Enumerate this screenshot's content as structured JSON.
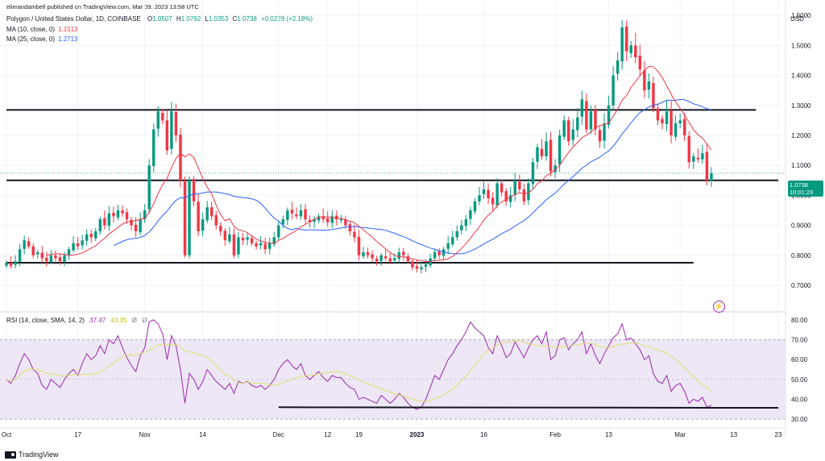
{
  "publisher_line": "elimandambell published on TradingView.com, Mar 09, 2023 13:58 UTC",
  "symbol": {
    "name": "Polygon / United States Dollar, 1D, COINBASE",
    "open_label": "O",
    "open": "1.0507",
    "high_label": "H",
    "high": "1.0792",
    "low_label": "L",
    "low": "1.0353",
    "close_label": "C",
    "close": "1.0738",
    "change": "+0.0229 (+2.18%)"
  },
  "ma10": {
    "label": "MA (10, close, 0)",
    "value": "1.1513",
    "color": "#f23645"
  },
  "ma25": {
    "label": "MA (25, close, 0)",
    "value": "1.2713",
    "color": "#2962ff"
  },
  "rsi": {
    "label": "RSI (14, close, SMA, 14, 2)",
    "value": "37.47",
    "sma": "43.35",
    "extra1": "Ø",
    "extra2": "Ø",
    "color": "#9c27b0",
    "sma_color": "#d4d400"
  },
  "price_label": {
    "value": "1.0738",
    "countdown": "10:01:23"
  },
  "currency": "USD",
  "brand": "TradingView",
  "colors": {
    "up": "#089981",
    "down": "#f23645",
    "band": "#ede7f6"
  },
  "chart_data": [
    {
      "type": "candlestick",
      "title": "Polygon / United States Dollar, 1D, COINBASE",
      "ylabel": "USD",
      "yticks": [
        "1.6000",
        "1.5000",
        "1.4000",
        "1.3000",
        "1.2000",
        "1.1000",
        "1.0000",
        "0.9000",
        "0.8000",
        "0.7000"
      ],
      "ylim": [
        0.63,
        1.63
      ],
      "xticks": [
        {
          "label": "Oct",
          "day": 0
        },
        {
          "label": "17",
          "day": 16
        },
        {
          "label": "Nov",
          "day": 31
        },
        {
          "label": "14",
          "day": 44
        },
        {
          "label": "Dec",
          "day": 61
        },
        {
          "label": "12",
          "day": 72
        },
        {
          "label": "19",
          "day": 79
        },
        {
          "label": "2023",
          "day": 92
        },
        {
          "label": "16",
          "day": 107
        },
        {
          "label": "Feb",
          "day": 123
        },
        {
          "label": "13",
          "day": 135
        },
        {
          "label": "Mar",
          "day": 151
        },
        {
          "label": "13",
          "day": 163
        },
        {
          "label": "23",
          "day": 173
        }
      ],
      "horizontal_lines": [
        {
          "from_day": 0,
          "to_day": 168,
          "value": 1.285
        },
        {
          "from_day": 0,
          "to_day": 173,
          "value": 1.05
        },
        {
          "from_day": 0,
          "to_day": 154,
          "value": 0.775
        }
      ],
      "closes": [
        0.775,
        0.765,
        0.78,
        0.82,
        0.85,
        0.83,
        0.8,
        0.81,
        0.79,
        0.78,
        0.8,
        0.79,
        0.78,
        0.8,
        0.82,
        0.84,
        0.83,
        0.85,
        0.87,
        0.86,
        0.88,
        0.92,
        0.9,
        0.94,
        0.93,
        0.95,
        0.94,
        0.92,
        0.9,
        0.88,
        0.92,
        0.95,
        1.1,
        1.22,
        1.28,
        1.25,
        1.15,
        1.28,
        1.2,
        1.05,
        0.8,
        1.05,
        0.98,
        0.88,
        0.92,
        0.96,
        0.93,
        0.9,
        0.88,
        0.85,
        0.87,
        0.8,
        0.86,
        0.85,
        0.86,
        0.84,
        0.83,
        0.84,
        0.82,
        0.84,
        0.86,
        0.9,
        0.92,
        0.95,
        0.94,
        0.93,
        0.95,
        0.92,
        0.91,
        0.92,
        0.93,
        0.92,
        0.91,
        0.93,
        0.92,
        0.92,
        0.9,
        0.88,
        0.86,
        0.8,
        0.81,
        0.8,
        0.79,
        0.78,
        0.8,
        0.79,
        0.78,
        0.79,
        0.81,
        0.8,
        0.78,
        0.76,
        0.755,
        0.76,
        0.77,
        0.79,
        0.81,
        0.8,
        0.82,
        0.84,
        0.86,
        0.88,
        0.9,
        0.92,
        0.95,
        0.98,
        1.0,
        1.02,
        0.99,
        0.97,
        1.04,
        1.01,
        0.98,
        1.0,
        1.05,
        1.02,
        0.98,
        1.04,
        1.11,
        1.16,
        1.13,
        1.18,
        1.08,
        1.1,
        1.2,
        1.25,
        1.18,
        1.22,
        1.26,
        1.32,
        1.22,
        1.28,
        1.22,
        1.18,
        1.24,
        1.3,
        1.4,
        1.45,
        1.56,
        1.48,
        1.5,
        1.46,
        1.42,
        1.35,
        1.38,
        1.29,
        1.25,
        1.24,
        1.28,
        1.2,
        1.24,
        1.25,
        1.2,
        1.11,
        1.13,
        1.12,
        1.14,
        1.05,
        1.0738
      ],
      "ma10_day_range": [
        9,
        162
      ],
      "ma25_day_range": [
        24,
        162
      ]
    },
    {
      "type": "line",
      "title": "RSI (14, close, SMA, 14, 2)",
      "yticks": [
        "80.00",
        "70.00",
        "60.00",
        "50.00",
        "40.00",
        "30.00"
      ],
      "ylim": [
        28,
        82
      ],
      "band": [
        30,
        70
      ],
      "midline": 50,
      "trendline": {
        "from_day": 61,
        "to_day": 173,
        "value": 36
      },
      "series": [
        {
          "name": "RSI",
          "values": [
            50,
            48,
            52,
            58,
            63,
            60,
            55,
            53,
            47,
            45,
            50,
            48,
            46,
            50,
            53,
            55,
            52,
            58,
            63,
            60,
            62,
            67,
            63,
            70,
            68,
            72,
            66,
            61,
            57,
            54,
            62,
            66,
            79,
            80,
            78,
            73,
            60,
            72,
            67,
            55,
            38,
            53,
            50,
            45,
            49,
            55,
            52,
            49,
            47,
            45,
            48,
            43,
            49,
            48,
            49,
            47,
            46,
            47,
            45,
            47,
            50,
            55,
            58,
            60,
            57,
            55,
            58,
            52,
            50,
            52,
            54,
            51,
            49,
            52,
            51,
            51,
            48,
            46,
            45,
            40,
            41,
            40,
            39,
            38,
            42,
            40,
            38,
            40,
            43,
            41,
            38,
            36,
            35,
            36,
            40,
            46,
            52,
            50,
            55,
            60,
            63,
            67,
            70,
            74,
            79,
            76,
            74,
            72,
            66,
            63,
            72,
            67,
            61,
            63,
            69,
            65,
            61,
            66,
            70,
            72,
            68,
            74,
            60,
            62,
            70,
            71,
            65,
            68,
            70,
            74,
            63,
            68,
            62,
            58,
            63,
            67,
            71,
            73,
            78,
            70,
            71,
            68,
            65,
            60,
            62,
            53,
            49,
            48,
            52,
            44,
            47,
            48,
            44,
            38,
            40,
            39,
            41,
            36,
            37
          ]
        }
      ]
    }
  ]
}
